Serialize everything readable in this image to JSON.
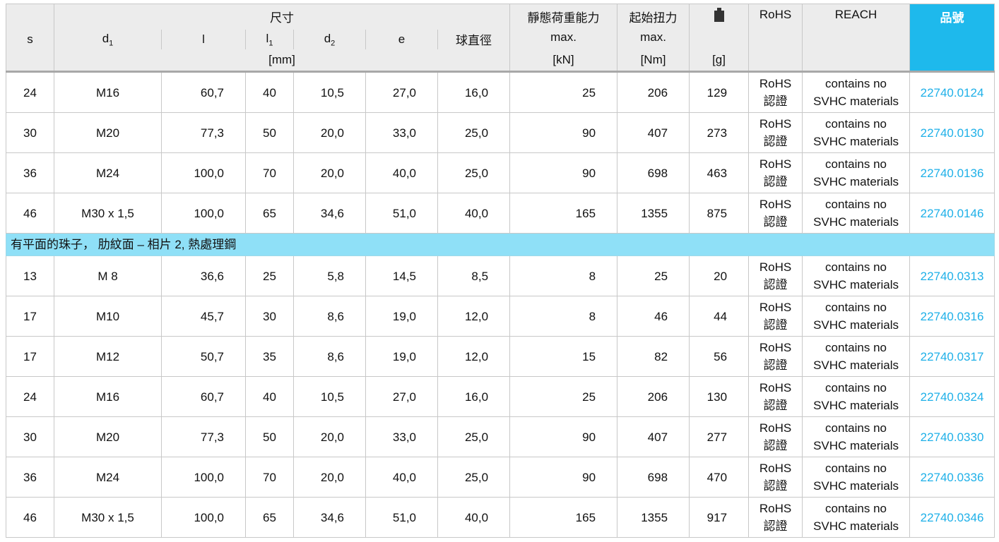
{
  "header": {
    "dimensions": "尺寸",
    "mm": "[mm]",
    "cols": [
      "s",
      "d",
      "l",
      "l",
      "d",
      "e",
      "球直徑"
    ],
    "subs": {
      "d1": "1",
      "l1": "1",
      "d2": "2"
    },
    "load": "靜態荷重能力",
    "load_max": "max.",
    "load_unit": "[kN]",
    "torque": "起始扭力",
    "torque_max": "max.",
    "torque_unit": "[Nm]",
    "weight_icon": "weight-icon",
    "weight_unit": "[g]",
    "rohs": "RoHS",
    "reach": "REACH",
    "part_no": "品號"
  },
  "colors": {
    "accent": "#1eb9ec",
    "section": "#8fe0f7",
    "link": "#1eb0e8"
  },
  "rows_a": [
    [
      "24",
      "M16",
      "60,7",
      "40",
      "10,5",
      "27,0",
      "16,0",
      "25",
      "206",
      "129",
      "22740.0124"
    ],
    [
      "30",
      "M20",
      "77,3",
      "50",
      "20,0",
      "33,0",
      "25,0",
      "90",
      "407",
      "273",
      "22740.0130"
    ],
    [
      "36",
      "M24",
      "100,0",
      "70",
      "20,0",
      "40,0",
      "25,0",
      "90",
      "698",
      "463",
      "22740.0136"
    ],
    [
      "46",
      "M30 x 1,5",
      "100,0",
      "65",
      "34,6",
      "51,0",
      "40,0",
      "165",
      "1355",
      "875",
      "22740.0146"
    ]
  ],
  "section": "有平面的珠子， 肋紋面 – 相片 2, 熱處理鋼",
  "rows_b": [
    [
      "13",
      "M  8",
      "36,6",
      "25",
      "5,8",
      "14,5",
      "8,5",
      "8",
      "25",
      "20",
      "22740.0313"
    ],
    [
      "17",
      "M10",
      "45,7",
      "30",
      "8,6",
      "19,0",
      "12,0",
      "8",
      "46",
      "44",
      "22740.0316"
    ],
    [
      "17",
      "M12",
      "50,7",
      "35",
      "8,6",
      "19,0",
      "12,0",
      "15",
      "82",
      "56",
      "22740.0317"
    ],
    [
      "24",
      "M16",
      "60,7",
      "40",
      "10,5",
      "27,0",
      "16,0",
      "25",
      "206",
      "130",
      "22740.0324"
    ],
    [
      "30",
      "M20",
      "77,3",
      "50",
      "20,0",
      "33,0",
      "25,0",
      "90",
      "407",
      "277",
      "22740.0330"
    ],
    [
      "36",
      "M24",
      "100,0",
      "70",
      "20,0",
      "40,0",
      "25,0",
      "90",
      "698",
      "470",
      "22740.0336"
    ],
    [
      "46",
      "M30 x 1,5",
      "100,0",
      "65",
      "34,6",
      "51,0",
      "40,0",
      "165",
      "1355",
      "917",
      "22740.0346"
    ]
  ],
  "rohs_cell": [
    "RoHS",
    "認證"
  ],
  "reach_cell": [
    "contains no",
    "SVHC materials"
  ]
}
